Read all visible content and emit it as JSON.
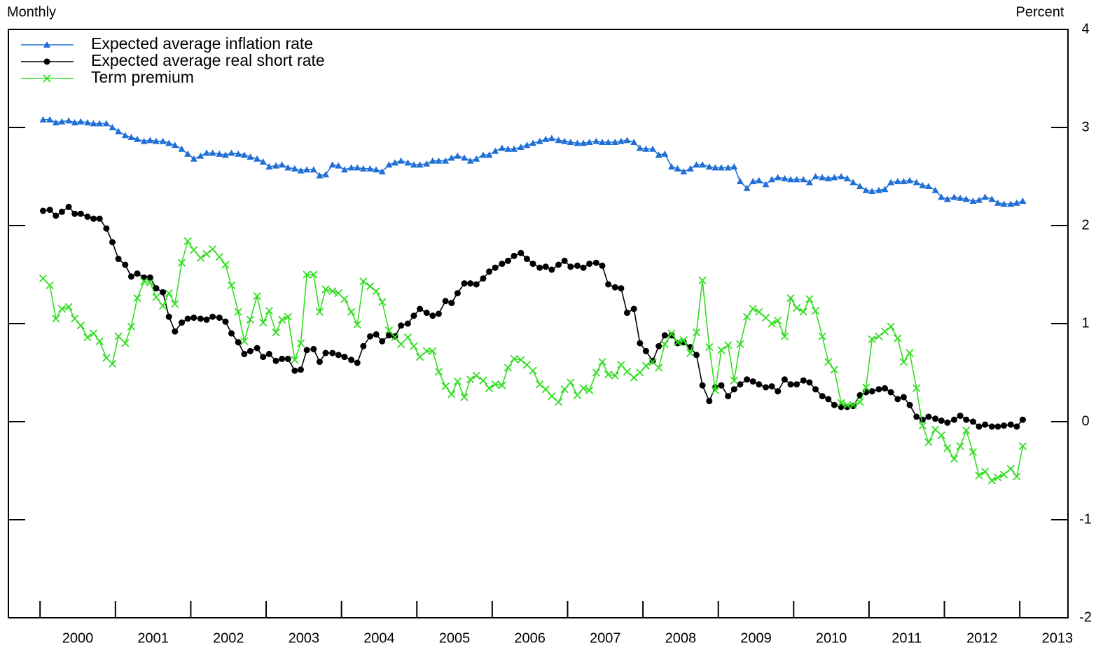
{
  "chart_data": {
    "type": "line",
    "frequency_label": "Monthly",
    "y_axis_label": "Percent",
    "legend": "upper left",
    "grid": false,
    "xlim": [
      1999.58,
      2013.64
    ],
    "xticks": [
      2000,
      2001,
      2002,
      2003,
      2004,
      2005,
      2006,
      2007,
      2008,
      2009,
      2010,
      2011,
      2012,
      2013
    ],
    "ylim": [
      -2,
      4
    ],
    "yticks": [
      -2,
      -1,
      0,
      1,
      2,
      3,
      4
    ],
    "x": [
      2000.04,
      2000.13,
      2000.21,
      2000.29,
      2000.38,
      2000.46,
      2000.54,
      2000.63,
      2000.71,
      2000.79,
      2000.88,
      2000.96,
      2001.04,
      2001.13,
      2001.21,
      2001.29,
      2001.38,
      2001.46,
      2001.54,
      2001.63,
      2001.71,
      2001.79,
      2001.88,
      2001.96,
      2002.04,
      2002.13,
      2002.21,
      2002.29,
      2002.38,
      2002.46,
      2002.54,
      2002.63,
      2002.71,
      2002.79,
      2002.88,
      2002.96,
      2003.04,
      2003.13,
      2003.21,
      2003.29,
      2003.38,
      2003.46,
      2003.54,
      2003.63,
      2003.71,
      2003.79,
      2003.88,
      2003.96,
      2004.04,
      2004.13,
      2004.21,
      2004.29,
      2004.38,
      2004.46,
      2004.54,
      2004.63,
      2004.71,
      2004.79,
      2004.88,
      2004.96,
      2005.04,
      2005.13,
      2005.21,
      2005.29,
      2005.38,
      2005.46,
      2005.54,
      2005.63,
      2005.71,
      2005.79,
      2005.88,
      2005.96,
      2006.04,
      2006.13,
      2006.21,
      2006.29,
      2006.38,
      2006.46,
      2006.54,
      2006.63,
      2006.71,
      2006.79,
      2006.88,
      2006.96,
      2007.04,
      2007.13,
      2007.21,
      2007.29,
      2007.38,
      2007.46,
      2007.54,
      2007.63,
      2007.71,
      2007.79,
      2007.88,
      2007.96,
      2008.04,
      2008.13,
      2008.21,
      2008.29,
      2008.38,
      2008.46,
      2008.54,
      2008.63,
      2008.71,
      2008.79,
      2008.88,
      2008.96,
      2009.04,
      2009.13,
      2009.21,
      2009.29,
      2009.38,
      2009.46,
      2009.54,
      2009.63,
      2009.71,
      2009.79,
      2009.88,
      2009.96,
      2010.04,
      2010.13,
      2010.21,
      2010.29,
      2010.38,
      2010.46,
      2010.54,
      2010.63,
      2010.71,
      2010.79,
      2010.88,
      2010.96,
      2011.04,
      2011.13,
      2011.21,
      2011.29,
      2011.38,
      2011.46,
      2011.54,
      2011.63,
      2011.71,
      2011.79,
      2011.88,
      2011.96,
      2012.04,
      2012.13,
      2012.21,
      2012.29,
      2012.38,
      2012.46,
      2012.54,
      2012.63,
      2012.71,
      2012.79,
      2012.88,
      2012.96,
      2013.04
    ],
    "series": [
      {
        "name": "Expected average inflation rate",
        "color": "#1f6fd6",
        "marker": "triangle",
        "values": [
          3.08,
          3.08,
          3.05,
          3.06,
          3.07,
          3.05,
          3.06,
          3.05,
          3.04,
          3.04,
          3.04,
          3.0,
          2.96,
          2.92,
          2.9,
          2.88,
          2.86,
          2.87,
          2.86,
          2.86,
          2.84,
          2.82,
          2.78,
          2.73,
          2.68,
          2.71,
          2.74,
          2.74,
          2.73,
          2.72,
          2.74,
          2.73,
          2.72,
          2.7,
          2.68,
          2.65,
          2.6,
          2.61,
          2.62,
          2.59,
          2.58,
          2.56,
          2.57,
          2.57,
          2.51,
          2.52,
          2.62,
          2.61,
          2.57,
          2.59,
          2.59,
          2.58,
          2.58,
          2.57,
          2.55,
          2.62,
          2.64,
          2.66,
          2.64,
          2.62,
          2.62,
          2.63,
          2.66,
          2.66,
          2.66,
          2.69,
          2.71,
          2.69,
          2.66,
          2.68,
          2.72,
          2.72,
          2.76,
          2.79,
          2.78,
          2.78,
          2.8,
          2.82,
          2.84,
          2.86,
          2.88,
          2.89,
          2.87,
          2.86,
          2.85,
          2.84,
          2.84,
          2.85,
          2.86,
          2.85,
          2.85,
          2.85,
          2.86,
          2.87,
          2.85,
          2.79,
          2.78,
          2.78,
          2.72,
          2.73,
          2.6,
          2.58,
          2.55,
          2.58,
          2.62,
          2.62,
          2.6,
          2.59,
          2.59,
          2.59,
          2.6,
          2.45,
          2.38,
          2.45,
          2.46,
          2.42,
          2.47,
          2.49,
          2.48,
          2.47,
          2.47,
          2.47,
          2.44,
          2.5,
          2.49,
          2.48,
          2.49,
          2.5,
          2.48,
          2.44,
          2.4,
          2.36,
          2.35,
          2.36,
          2.37,
          2.44,
          2.45,
          2.45,
          2.46,
          2.44,
          2.41,
          2.4,
          2.36,
          2.29,
          2.27,
          2.29,
          2.28,
          2.27,
          2.25,
          2.26,
          2.29,
          2.27,
          2.23,
          2.22,
          2.22,
          2.23,
          2.25
        ]
      },
      {
        "name": "Expected average real short rate",
        "color": "#000000",
        "marker": "circle",
        "values": [
          2.15,
          2.16,
          2.1,
          2.14,
          2.19,
          2.12,
          2.12,
          2.09,
          2.07,
          2.07,
          1.97,
          1.83,
          1.66,
          1.6,
          1.48,
          1.51,
          1.47,
          1.47,
          1.36,
          1.32,
          1.07,
          0.92,
          1.01,
          1.05,
          1.06,
          1.05,
          1.04,
          1.07,
          1.06,
          1.02,
          0.9,
          0.81,
          0.69,
          0.72,
          0.75,
          0.66,
          0.69,
          0.62,
          0.64,
          0.64,
          0.52,
          0.53,
          0.73,
          0.74,
          0.61,
          0.7,
          0.7,
          0.68,
          0.66,
          0.63,
          0.6,
          0.77,
          0.87,
          0.89,
          0.82,
          0.88,
          0.87,
          0.98,
          1.0,
          1.08,
          1.15,
          1.11,
          1.08,
          1.1,
          1.23,
          1.21,
          1.31,
          1.41,
          1.41,
          1.4,
          1.46,
          1.53,
          1.57,
          1.61,
          1.64,
          1.69,
          1.72,
          1.66,
          1.61,
          1.57,
          1.58,
          1.55,
          1.6,
          1.64,
          1.58,
          1.59,
          1.57,
          1.61,
          1.62,
          1.59,
          1.4,
          1.37,
          1.36,
          1.11,
          1.15,
          0.8,
          0.72,
          0.62,
          0.77,
          0.88,
          0.88,
          0.8,
          0.81,
          0.76,
          0.68,
          0.37,
          0.21,
          0.35,
          0.37,
          0.26,
          0.33,
          0.38,
          0.43,
          0.41,
          0.38,
          0.35,
          0.36,
          0.31,
          0.43,
          0.38,
          0.38,
          0.42,
          0.4,
          0.33,
          0.26,
          0.23,
          0.17,
          0.15,
          0.15,
          0.16,
          0.27,
          0.3,
          0.31,
          0.33,
          0.34,
          0.3,
          0.23,
          0.25,
          0.17,
          0.05,
          0.02,
          0.05,
          0.03,
          0.01,
          -0.01,
          0.02,
          0.06,
          0.02,
          0.0,
          -0.05,
          -0.03,
          -0.05,
          -0.05,
          -0.04,
          -0.03,
          -0.05,
          0.02
        ]
      },
      {
        "name": "Term premium",
        "color": "#33dd22",
        "marker": "cross",
        "values": [
          1.46,
          1.39,
          1.05,
          1.15,
          1.17,
          1.05,
          0.98,
          0.86,
          0.9,
          0.82,
          0.65,
          0.59,
          0.87,
          0.8,
          0.97,
          1.26,
          1.43,
          1.42,
          1.27,
          1.18,
          1.31,
          1.2,
          1.62,
          1.84,
          1.75,
          1.67,
          1.71,
          1.76,
          1.68,
          1.6,
          1.39,
          1.12,
          0.82,
          1.04,
          1.28,
          1.01,
          1.13,
          0.91,
          1.04,
          1.07,
          0.63,
          0.8,
          1.5,
          1.5,
          1.12,
          1.35,
          1.33,
          1.31,
          1.25,
          1.12,
          0.99,
          1.43,
          1.38,
          1.33,
          1.22,
          0.93,
          0.86,
          0.79,
          0.86,
          0.77,
          0.66,
          0.72,
          0.72,
          0.51,
          0.36,
          0.28,
          0.41,
          0.25,
          0.43,
          0.47,
          0.42,
          0.34,
          0.38,
          0.37,
          0.55,
          0.64,
          0.63,
          0.58,
          0.52,
          0.38,
          0.33,
          0.26,
          0.2,
          0.33,
          0.4,
          0.27,
          0.34,
          0.32,
          0.5,
          0.61,
          0.48,
          0.47,
          0.58,
          0.51,
          0.45,
          0.5,
          0.57,
          0.61,
          0.55,
          0.79,
          0.9,
          0.81,
          0.83,
          0.7,
          0.91,
          1.44,
          0.76,
          0.32,
          0.73,
          0.78,
          0.42,
          0.79,
          1.07,
          1.15,
          1.12,
          1.06,
          1.0,
          1.03,
          0.87,
          1.26,
          1.16,
          1.12,
          1.25,
          1.13,
          0.87,
          0.61,
          0.53,
          0.19,
          0.17,
          0.17,
          0.2,
          0.35,
          0.84,
          0.87,
          0.92,
          0.97,
          0.85,
          0.61,
          0.7,
          0.34,
          -0.04,
          -0.21,
          -0.08,
          -0.14,
          -0.27,
          -0.38,
          -0.25,
          -0.09,
          -0.31,
          -0.55,
          -0.51,
          -0.6,
          -0.57,
          -0.54,
          -0.48,
          -0.56,
          -0.25
        ]
      }
    ]
  }
}
